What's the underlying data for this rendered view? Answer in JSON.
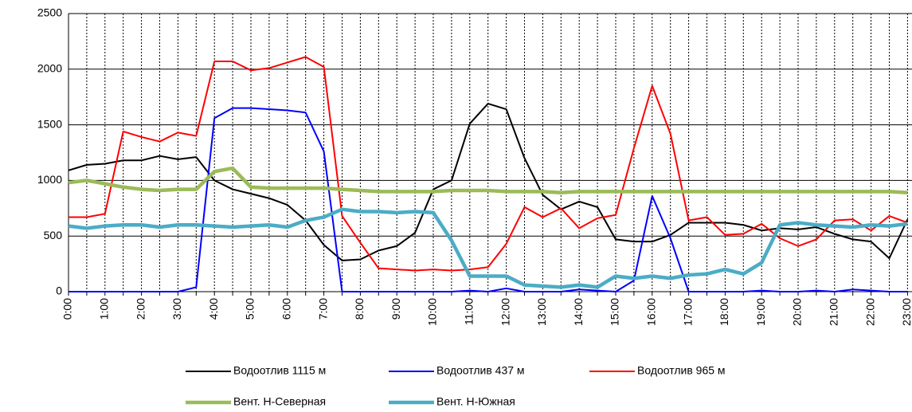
{
  "chart_data": {
    "type": "line",
    "categories": [
      "0:00",
      null,
      "1:00",
      null,
      "2:00",
      null,
      "3:00",
      null,
      "4:00",
      null,
      "5:00",
      null,
      "6:00",
      null,
      "7:00",
      null,
      "8:00",
      null,
      "9:00",
      null,
      "10:00",
      null,
      "11:00",
      null,
      "12:00",
      null,
      "13:00",
      null,
      "14:00",
      null,
      "15:00",
      null,
      "16:00",
      null,
      "17:00",
      null,
      "18:00",
      null,
      "19:00",
      null,
      "20:00",
      null,
      "21:00",
      null,
      "22:00",
      null,
      "23:00"
    ],
    "series": [
      {
        "name": "Водоотлив 1115 м",
        "color": "#000000",
        "values": [
          1090,
          1140,
          1150,
          1180,
          1180,
          1220,
          1190,
          1210,
          1000,
          920,
          880,
          840,
          780,
          640,
          420,
          280,
          290,
          370,
          410,
          530,
          920,
          1000,
          1510,
          1690,
          1640,
          1200,
          870,
          740,
          810,
          760,
          470,
          450,
          450,
          510,
          620,
          620,
          620,
          600,
          550,
          570,
          560,
          580,
          520,
          470,
          450,
          300,
          650
        ]
      },
      {
        "name": "Водоотлив 437 м",
        "color": "#0000ff",
        "values": [
          0,
          0,
          0,
          0,
          0,
          0,
          0,
          40,
          1560,
          1650,
          1650,
          1640,
          1630,
          1610,
          1260,
          0,
          0,
          0,
          0,
          0,
          0,
          0,
          10,
          0,
          30,
          0,
          0,
          0,
          20,
          10,
          0,
          100,
          860,
          480,
          0,
          0,
          0,
          0,
          10,
          0,
          0,
          10,
          0,
          20,
          10,
          0,
          0
        ]
      },
      {
        "name": "Водоотлив 965 м",
        "color": "#ff0000",
        "values": [
          670,
          670,
          700,
          1440,
          1390,
          1350,
          1430,
          1400,
          2070,
          2070,
          1990,
          2010,
          2060,
          2110,
          2020,
          680,
          440,
          210,
          200,
          190,
          200,
          190,
          200,
          220,
          430,
          760,
          670,
          750,
          570,
          660,
          690,
          1290,
          1850,
          1420,
          640,
          670,
          510,
          520,
          610,
          480,
          410,
          470,
          640,
          650,
          550,
          680,
          620
        ]
      },
      {
        "name": "Вент. Н-Северная",
        "color": "#9bbb59",
        "values": [
          980,
          1000,
          970,
          940,
          920,
          910,
          920,
          920,
          1080,
          1110,
          940,
          930,
          930,
          930,
          930,
          920,
          910,
          900,
          900,
          900,
          900,
          910,
          910,
          910,
          900,
          900,
          900,
          890,
          900,
          900,
          900,
          900,
          900,
          900,
          900,
          900,
          900,
          900,
          900,
          900,
          900,
          900,
          900,
          900,
          900,
          900,
          890
        ]
      },
      {
        "name": "Вент. Н-Южная",
        "color": "#4bacc6",
        "values": [
          590,
          570,
          590,
          600,
          600,
          580,
          600,
          600,
          590,
          580,
          590,
          600,
          580,
          640,
          670,
          740,
          720,
          720,
          710,
          720,
          710,
          460,
          140,
          140,
          140,
          60,
          50,
          40,
          60,
          40,
          140,
          120,
          140,
          120,
          150,
          160,
          200,
          160,
          260,
          600,
          620,
          600,
          590,
          580,
          600,
          590,
          610
        ]
      }
    ],
    "ylim": [
      0,
      2500
    ],
    "yticks": [
      0,
      500,
      1000,
      1500,
      2000,
      2500
    ],
    "grid": true
  }
}
